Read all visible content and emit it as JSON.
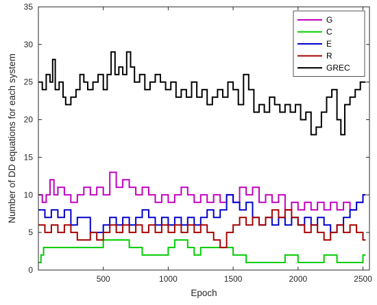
{
  "chart_data": {
    "type": "line",
    "title": "",
    "xlabel": "Epoch",
    "ylabel": "Number of DD equations for each system",
    "xlim": [
      0,
      2550
    ],
    "ylim": [
      0,
      35
    ],
    "xticks": [
      500,
      1000,
      1500,
      2000,
      2500
    ],
    "yticks": [
      0,
      5,
      10,
      15,
      20,
      25,
      30,
      35
    ],
    "grid": false,
    "legend_position": "top-right",
    "series": [
      {
        "name": "G",
        "color": "#bf00bf",
        "points": [
          [
            0,
            10
          ],
          [
            30,
            9
          ],
          [
            60,
            10
          ],
          [
            90,
            12
          ],
          [
            120,
            10
          ],
          [
            150,
            11
          ],
          [
            200,
            10
          ],
          [
            250,
            9
          ],
          [
            300,
            10
          ],
          [
            350,
            11
          ],
          [
            400,
            10
          ],
          [
            450,
            11
          ],
          [
            500,
            10
          ],
          [
            550,
            13
          ],
          [
            600,
            11
          ],
          [
            650,
            12
          ],
          [
            700,
            11
          ],
          [
            750,
            10
          ],
          [
            800,
            11
          ],
          [
            850,
            10
          ],
          [
            900,
            9
          ],
          [
            950,
            10
          ],
          [
            1000,
            9
          ],
          [
            1050,
            10
          ],
          [
            1100,
            11
          ],
          [
            1150,
            10
          ],
          [
            1200,
            9
          ],
          [
            1250,
            10
          ],
          [
            1300,
            9
          ],
          [
            1350,
            10
          ],
          [
            1400,
            9
          ],
          [
            1450,
            10
          ],
          [
            1500,
            9
          ],
          [
            1550,
            11
          ],
          [
            1600,
            10
          ],
          [
            1650,
            11
          ],
          [
            1700,
            9
          ],
          [
            1750,
            10
          ],
          [
            1800,
            9
          ],
          [
            1850,
            10
          ],
          [
            1900,
            8
          ],
          [
            1950,
            9
          ],
          [
            2000,
            8
          ],
          [
            2050,
            9
          ],
          [
            2100,
            8
          ],
          [
            2150,
            9
          ],
          [
            2200,
            8
          ],
          [
            2250,
            9
          ],
          [
            2300,
            8
          ],
          [
            2350,
            9
          ],
          [
            2400,
            8
          ],
          [
            2450,
            9
          ],
          [
            2500,
            10
          ],
          [
            2520,
            10
          ]
        ]
      },
      {
        "name": "C",
        "color": "#00cc00",
        "points": [
          [
            0,
            1
          ],
          [
            20,
            2
          ],
          [
            40,
            3
          ],
          [
            500,
            4
          ],
          [
            700,
            3
          ],
          [
            800,
            2
          ],
          [
            1000,
            3
          ],
          [
            1050,
            4
          ],
          [
            1150,
            3
          ],
          [
            1200,
            2
          ],
          [
            1250,
            3
          ],
          [
            1500,
            2
          ],
          [
            1600,
            1
          ],
          [
            1900,
            2
          ],
          [
            2000,
            1
          ],
          [
            2200,
            2
          ],
          [
            2300,
            1
          ],
          [
            2400,
            1
          ],
          [
            2500,
            2
          ],
          [
            2520,
            2
          ]
        ]
      },
      {
        "name": "E",
        "color": "#0000cc",
        "points": [
          [
            0,
            8
          ],
          [
            50,
            7
          ],
          [
            100,
            8
          ],
          [
            150,
            7
          ],
          [
            200,
            8
          ],
          [
            250,
            6
          ],
          [
            300,
            7
          ],
          [
            400,
            5
          ],
          [
            500,
            6
          ],
          [
            550,
            7
          ],
          [
            600,
            6
          ],
          [
            650,
            7
          ],
          [
            700,
            6
          ],
          [
            750,
            7
          ],
          [
            800,
            8
          ],
          [
            850,
            7
          ],
          [
            900,
            6
          ],
          [
            950,
            7
          ],
          [
            1000,
            6
          ],
          [
            1050,
            7
          ],
          [
            1100,
            6
          ],
          [
            1150,
            7
          ],
          [
            1200,
            6
          ],
          [
            1250,
            7
          ],
          [
            1300,
            8
          ],
          [
            1350,
            7
          ],
          [
            1400,
            8
          ],
          [
            1450,
            10
          ],
          [
            1500,
            9
          ],
          [
            1550,
            8
          ],
          [
            1600,
            9
          ],
          [
            1650,
            7
          ],
          [
            1700,
            6
          ],
          [
            1750,
            7
          ],
          [
            1800,
            6
          ],
          [
            1850,
            7
          ],
          [
            1900,
            6
          ],
          [
            1950,
            7
          ],
          [
            2000,
            6
          ],
          [
            2050,
            7
          ],
          [
            2100,
            6
          ],
          [
            2150,
            7
          ],
          [
            2200,
            6
          ],
          [
            2250,
            5
          ],
          [
            2300,
            6
          ],
          [
            2350,
            7
          ],
          [
            2400,
            8
          ],
          [
            2450,
            9
          ],
          [
            2500,
            10
          ],
          [
            2520,
            10
          ]
        ]
      },
      {
        "name": "R",
        "color": "#a50000",
        "points": [
          [
            0,
            6
          ],
          [
            50,
            5
          ],
          [
            100,
            6
          ],
          [
            150,
            5
          ],
          [
            200,
            6
          ],
          [
            250,
            5
          ],
          [
            300,
            4
          ],
          [
            400,
            5
          ],
          [
            450,
            4
          ],
          [
            500,
            5
          ],
          [
            550,
            6
          ],
          [
            600,
            5
          ],
          [
            650,
            6
          ],
          [
            700,
            5
          ],
          [
            750,
            6
          ],
          [
            800,
            5
          ],
          [
            850,
            6
          ],
          [
            900,
            5
          ],
          [
            950,
            6
          ],
          [
            1000,
            5
          ],
          [
            1050,
            6
          ],
          [
            1100,
            5
          ],
          [
            1150,
            6
          ],
          [
            1200,
            5
          ],
          [
            1250,
            6
          ],
          [
            1300,
            5
          ],
          [
            1350,
            4
          ],
          [
            1400,
            3
          ],
          [
            1450,
            5
          ],
          [
            1500,
            6
          ],
          [
            1550,
            7
          ],
          [
            1600,
            6
          ],
          [
            1650,
            7
          ],
          [
            1700,
            6
          ],
          [
            1750,
            7
          ],
          [
            1800,
            8
          ],
          [
            1850,
            7
          ],
          [
            1900,
            8
          ],
          [
            1950,
            7
          ],
          [
            2000,
            6
          ],
          [
            2050,
            5
          ],
          [
            2100,
            6
          ],
          [
            2150,
            5
          ],
          [
            2200,
            4
          ],
          [
            2250,
            5
          ],
          [
            2300,
            6
          ],
          [
            2350,
            5
          ],
          [
            2400,
            6
          ],
          [
            2450,
            5
          ],
          [
            2500,
            4
          ],
          [
            2520,
            4
          ]
        ]
      },
      {
        "name": "GREC",
        "color": "#000000",
        "points": [
          [
            0,
            25
          ],
          [
            30,
            24
          ],
          [
            60,
            26
          ],
          [
            90,
            25
          ],
          [
            110,
            28
          ],
          [
            130,
            24
          ],
          [
            160,
            25
          ],
          [
            190,
            23
          ],
          [
            210,
            22
          ],
          [
            250,
            23
          ],
          [
            290,
            24
          ],
          [
            320,
            26
          ],
          [
            350,
            25
          ],
          [
            380,
            24
          ],
          [
            420,
            25
          ],
          [
            460,
            26
          ],
          [
            500,
            24
          ],
          [
            530,
            26
          ],
          [
            560,
            29
          ],
          [
            590,
            26
          ],
          [
            620,
            27
          ],
          [
            650,
            26
          ],
          [
            680,
            29
          ],
          [
            710,
            27
          ],
          [
            740,
            25
          ],
          [
            780,
            26
          ],
          [
            820,
            24
          ],
          [
            860,
            25
          ],
          [
            900,
            26
          ],
          [
            940,
            25
          ],
          [
            980,
            24
          ],
          [
            1020,
            25
          ],
          [
            1060,
            23
          ],
          [
            1100,
            24
          ],
          [
            1140,
            23
          ],
          [
            1180,
            25
          ],
          [
            1220,
            23
          ],
          [
            1260,
            24
          ],
          [
            1300,
            22
          ],
          [
            1340,
            23
          ],
          [
            1380,
            24
          ],
          [
            1420,
            23
          ],
          [
            1460,
            25
          ],
          [
            1500,
            24
          ],
          [
            1540,
            22
          ],
          [
            1580,
            26
          ],
          [
            1620,
            24
          ],
          [
            1660,
            21
          ],
          [
            1700,
            22
          ],
          [
            1740,
            21
          ],
          [
            1780,
            23
          ],
          [
            1820,
            22
          ],
          [
            1860,
            21
          ],
          [
            1900,
            22
          ],
          [
            1940,
            21
          ],
          [
            1980,
            22
          ],
          [
            2020,
            20
          ],
          [
            2060,
            21
          ],
          [
            2100,
            18
          ],
          [
            2140,
            19
          ],
          [
            2180,
            21
          ],
          [
            2220,
            23
          ],
          [
            2260,
            24
          ],
          [
            2300,
            20
          ],
          [
            2330,
            18
          ],
          [
            2360,
            22
          ],
          [
            2400,
            23
          ],
          [
            2440,
            24
          ],
          [
            2480,
            25
          ],
          [
            2520,
            25
          ]
        ]
      }
    ]
  }
}
